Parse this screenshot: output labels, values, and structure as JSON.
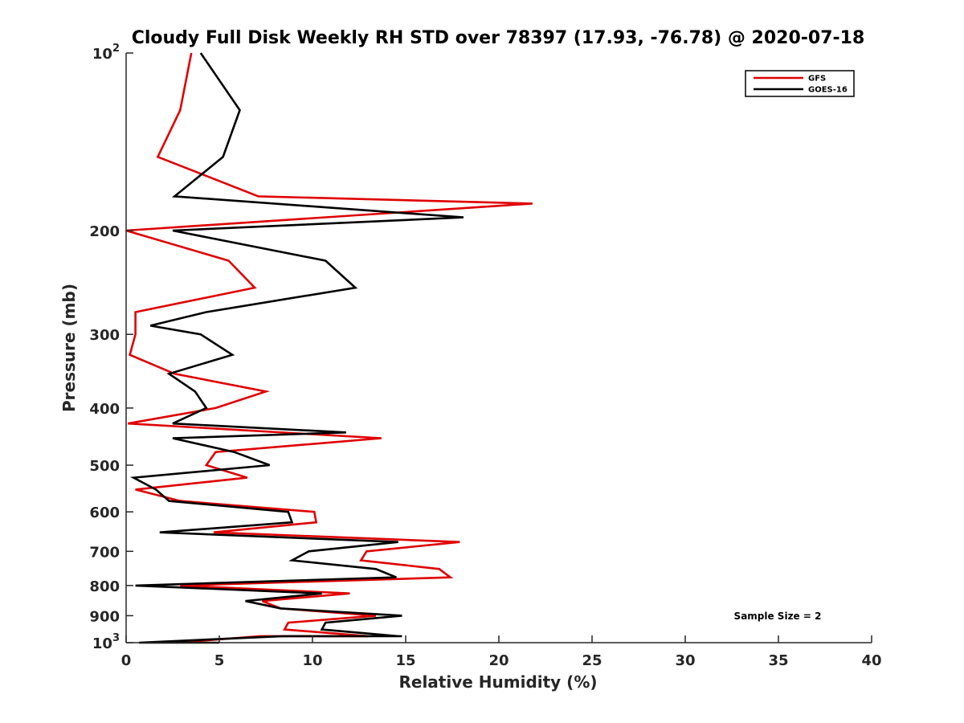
{
  "chart_data": {
    "type": "line",
    "title": "Cloudy Full Disk Weekly RH STD over 78397 (17.93, -76.78) @ 2020-07-18",
    "xlabel": "Relative Humidity (%)",
    "ylabel": "Pressure (mb)",
    "xlim": [
      0,
      40
    ],
    "ylim": [
      100,
      1000
    ],
    "yscale": "log",
    "y_reversed": true,
    "grid": false,
    "legend_position": "top-right",
    "x_ticks": [
      0,
      5,
      10,
      15,
      20,
      25,
      30,
      35,
      40
    ],
    "x_tick_labels": [
      "0",
      "5",
      "10",
      "15",
      "20",
      "25",
      "30",
      "35",
      "40"
    ],
    "y_ticks": [
      100,
      200,
      300,
      400,
      500,
      600,
      700,
      800,
      900,
      1000
    ],
    "y_tick_labels": [
      {
        "base": "10",
        "exp": "2"
      },
      {
        "base": "200",
        "exp": ""
      },
      {
        "base": "300",
        "exp": ""
      },
      {
        "base": "400",
        "exp": ""
      },
      {
        "base": "500",
        "exp": ""
      },
      {
        "base": "600",
        "exp": ""
      },
      {
        "base": "700",
        "exp": ""
      },
      {
        "base": "800",
        "exp": ""
      },
      {
        "base": "900",
        "exp": ""
      },
      {
        "base": "10",
        "exp": "3"
      }
    ],
    "annotation": "Sample Size = 2",
    "series": [
      {
        "name": "GFS",
        "color": "#e00000",
        "x": [
          3.5,
          2.9,
          1.7,
          7.1,
          21.8,
          0.0,
          5.5,
          6.9,
          0.5,
          0.5,
          0.2,
          2.6,
          7.5,
          4.8,
          0.1,
          13.7,
          4.8,
          4.3,
          6.5,
          0.5,
          2.9,
          10.1,
          10.2,
          4.7,
          17.9,
          12.9,
          12.6,
          16.8,
          17.4,
          2.9,
          12.0,
          7.3,
          8.3,
          13.4,
          8.7,
          8.5,
          13.0,
          12.6,
          10.1,
          7.2,
          2.7
        ],
        "y": [
          100,
          125,
          150,
          175,
          180,
          200,
          225,
          250,
          275,
          300,
          325,
          350,
          375,
          400,
          425,
          450,
          475,
          500,
          525,
          550,
          575,
          600,
          625,
          650,
          675,
          700,
          725,
          750,
          775,
          800,
          825,
          850,
          875,
          900,
          925,
          950,
          975,
          975,
          975,
          975,
          1000
        ]
      },
      {
        "name": "GOES-16",
        "color": "#000000",
        "x": [
          4.0,
          6.1,
          5.2,
          2.6,
          18.1,
          2.5,
          10.7,
          12.3,
          4.3,
          1.3,
          4.0,
          5.7,
          2.3,
          3.7,
          4.3,
          2.5,
          11.8,
          2.5,
          5.8,
          7.7,
          0.4,
          1.6,
          2.3,
          8.7,
          8.9,
          1.8,
          14.6,
          9.8,
          8.9,
          13.4,
          14.5,
          0.5,
          10.5,
          6.4,
          8.3,
          14.8,
          10.7,
          10.5,
          14.6,
          14.8,
          14.5,
          11.8,
          8.4,
          0.7,
          5.0
        ],
        "y": [
          100,
          125,
          150,
          175,
          190,
          200,
          225,
          250,
          275,
          290,
          300,
          325,
          350,
          375,
          400,
          425,
          440,
          450,
          475,
          500,
          525,
          550,
          575,
          600,
          625,
          650,
          675,
          700,
          725,
          750,
          775,
          800,
          825,
          850,
          875,
          900,
          925,
          950,
          975,
          975,
          975,
          975,
          975,
          1000,
          1000
        ]
      }
    ]
  }
}
